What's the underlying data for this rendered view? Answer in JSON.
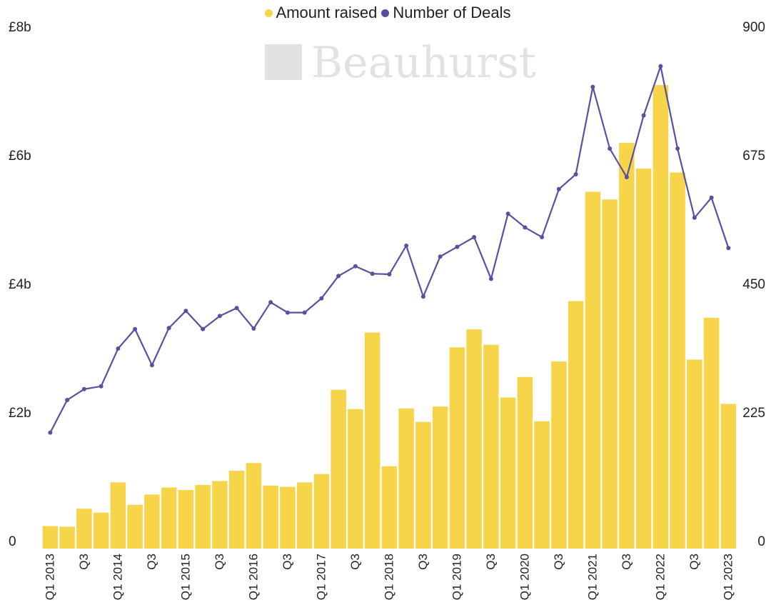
{
  "legend": {
    "amount_label": "Amount raised",
    "deals_label": "Number of Deals"
  },
  "watermark": "Beauhurst",
  "colors": {
    "bars": "#F6D54A",
    "line": "#5A50A0",
    "text": "#222222",
    "watermark": "#E2E2E2"
  },
  "chart_data": {
    "type": "bar",
    "categories": [
      "Q1 2013",
      "Q2 2013",
      "Q3 2013",
      "Q4 2013",
      "Q1 2014",
      "Q2 2014",
      "Q3 2014",
      "Q4 2014",
      "Q1 2015",
      "Q2 2015",
      "Q3 2015",
      "Q4 2015",
      "Q1 2016",
      "Q2 2016",
      "Q3 2016",
      "Q4 2016",
      "Q1 2017",
      "Q2 2017",
      "Q3 2017",
      "Q4 2017",
      "Q1 2018",
      "Q2 2018",
      "Q3 2018",
      "Q4 2018",
      "Q1 2019",
      "Q2 2019",
      "Q3 2019",
      "Q4 2019",
      "Q1 2020",
      "Q2 2020",
      "Q3 2020",
      "Q4 2020",
      "Q1 2021",
      "Q2 2021",
      "Q3 2021",
      "Q4 2021",
      "Q1 2022",
      "Q2 2022",
      "Q3 2022",
      "Q4 2022",
      "Q1 2023"
    ],
    "tick_labels": [
      "Q1 2013",
      "",
      "Q3",
      "",
      "Q1 2014",
      "",
      "Q3",
      "",
      "Q1 2015",
      "",
      "Q3",
      "",
      "Q1 2016",
      "",
      "Q3",
      "",
      "Q1 2017",
      "",
      "Q3",
      "",
      "Q1 2018",
      "",
      "Q3",
      "",
      "Q1 2019",
      "",
      "Q3",
      "",
      "Q1 2020",
      "",
      "Q3",
      "",
      "Q1 2021",
      "",
      "Q3",
      "",
      "Q1 2022",
      "",
      "Q3",
      "",
      "Q1 2023"
    ],
    "series": [
      {
        "name": "Amount raised",
        "type": "bar",
        "axis": "left",
        "unit": "£b",
        "values": [
          0.35,
          0.34,
          0.62,
          0.56,
          1.03,
          0.68,
          0.84,
          0.95,
          0.91,
          0.99,
          1.05,
          1.21,
          1.33,
          0.98,
          0.96,
          1.03,
          1.16,
          2.47,
          2.17,
          3.36,
          1.28,
          2.18,
          1.97,
          2.21,
          3.13,
          3.41,
          3.17,
          2.35,
          2.67,
          1.98,
          2.91,
          3.85,
          5.55,
          5.43,
          6.31,
          5.91,
          7.21,
          5.85,
          2.94,
          3.59,
          2.25
        ]
      },
      {
        "name": "Number of Deals",
        "type": "line",
        "axis": "right",
        "values": [
          203,
          260,
          279,
          284,
          350,
          384,
          321,
          386,
          416,
          384,
          407,
          421,
          385,
          431,
          413,
          413,
          438,
          477,
          494,
          481,
          480,
          530,
          441,
          511,
          528,
          545,
          472,
          586,
          562,
          545,
          629,
          655,
          808,
          700,
          650,
          758,
          844,
          700,
          579,
          614,
          526
        ]
      }
    ],
    "y_left": {
      "ticks": [
        "0",
        "£2b",
        "£4b",
        "£6b",
        "£8b"
      ],
      "tick_values": [
        0,
        2,
        4,
        6,
        8
      ],
      "range": [
        0,
        8
      ]
    },
    "y_right": {
      "ticks": [
        "0",
        "225",
        "450",
        "675",
        "900"
      ],
      "tick_values": [
        0,
        225,
        450,
        675,
        900
      ],
      "range": [
        0,
        900
      ]
    },
    "grid": false,
    "legend_position": "top-center"
  }
}
